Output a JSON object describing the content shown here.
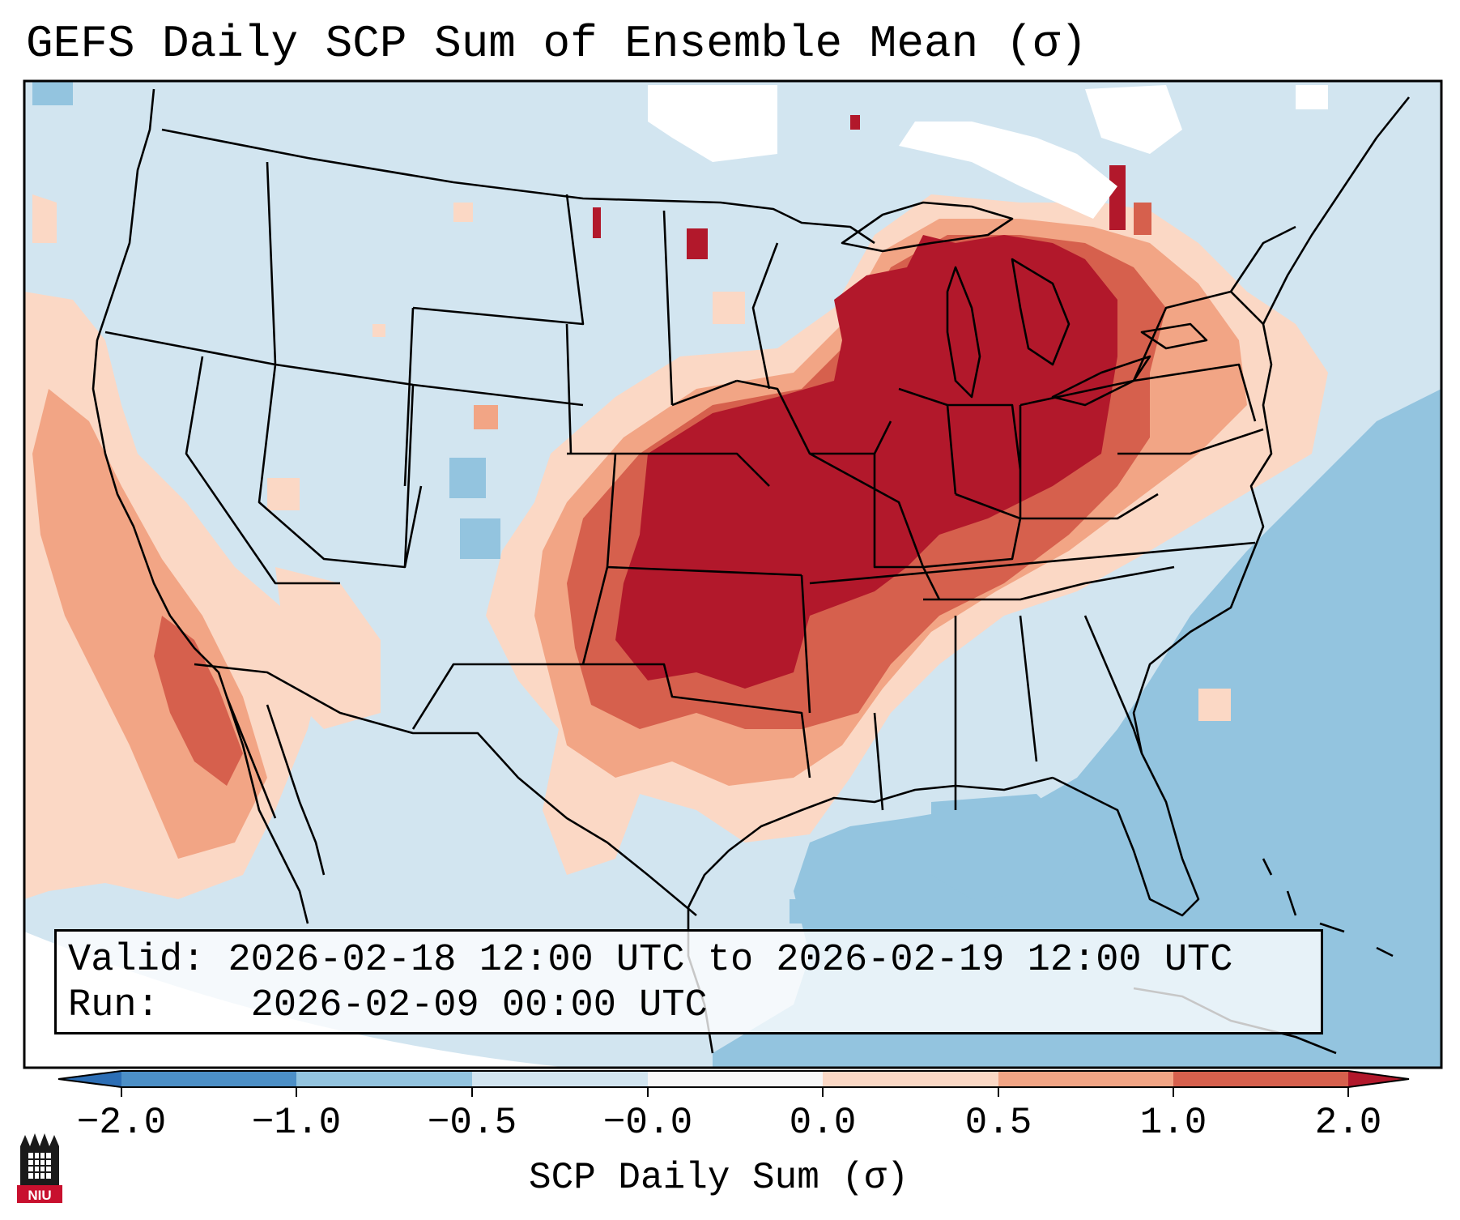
{
  "title": "GEFS Daily SCP Sum of Ensemble Mean (σ)",
  "info": {
    "valid_label": "Valid:",
    "valid_value": "2026-02-18 12:00 UTC to 2026-02-19 12:00 UTC",
    "run_label": "Run:",
    "run_value": "2026-02-09 00:00 UTC"
  },
  "colorbar": {
    "label": "SCP Daily Sum (σ)",
    "ticks": [
      "−2.0",
      "−1.0",
      "−0.5",
      "−0.0",
      "0.0",
      "0.5",
      "1.0",
      "2.0"
    ],
    "bins": [
      {
        "range": "< -2.0",
        "color": "#2c6eb5"
      },
      {
        "range": "-2.0 to -1.0",
        "color": "#4c8fc6"
      },
      {
        "range": "-1.0 to -0.5",
        "color": "#93c4df"
      },
      {
        "range": "-0.5 to -0.0",
        "color": "#d2e5f0"
      },
      {
        "range": "-0.0 to 0.0",
        "color": "#f7f7f7"
      },
      {
        "range": "0.0 to 0.5",
        "color": "#fbd8c5"
      },
      {
        "range": "0.5 to 1.0",
        "color": "#f2a585"
      },
      {
        "range": "1.0 to 2.0",
        "color": "#d6604d"
      },
      {
        "range": "> 2.0",
        "color": "#b2182b"
      }
    ]
  },
  "map": {
    "region": "Contiguous United States",
    "background_color": "#d2e5f0",
    "ocean_negative_color": "#93c4df",
    "regions": [
      {
        "name": "Central US / Ohio Valley / Great Lakes",
        "category": "> 2.0",
        "color": "#b2182b"
      },
      {
        "name": "Southern Plains and Mid-South margin",
        "category": "1.0 to 2.0",
        "color": "#d6604d"
      },
      {
        "name": "Texas and Gulf Coast",
        "category": "0.5 to 1.0",
        "color": "#f2a585"
      },
      {
        "name": "Southwest / California",
        "category": "0.0 to 0.5",
        "color": "#fbd8c5"
      },
      {
        "name": "Atlantic and Gulf waters",
        "category": "-1.0 to -0.5",
        "color": "#93c4df"
      }
    ]
  },
  "logo": {
    "text": "NIU",
    "color": "#c8102e"
  }
}
